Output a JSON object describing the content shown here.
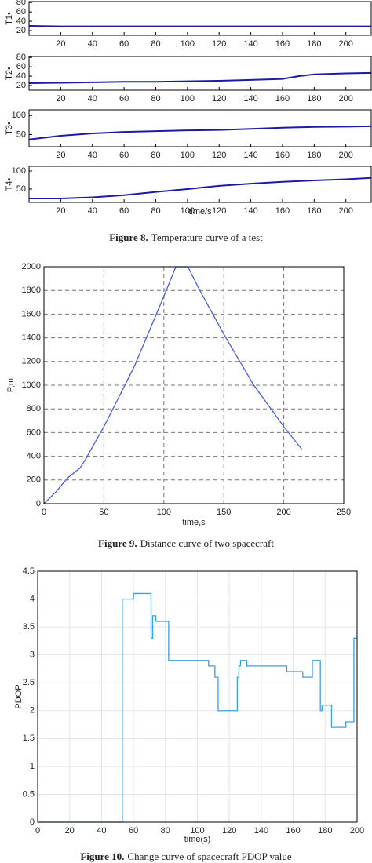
{
  "chart_data": [
    {
      "type": "line",
      "caption_label": "Figure 8.",
      "caption": "Temperature curve of a test",
      "xlabel": "time/s",
      "xlim": [
        0,
        216
      ],
      "xticks": [
        20,
        40,
        60,
        80,
        100,
        120,
        140,
        160,
        180,
        200
      ],
      "color": "#1c1ca0",
      "panels": [
        {
          "ylabel": "T1•",
          "ylim": [
            10,
            82
          ],
          "yticks": [
            20,
            40,
            60,
            80
          ],
          "x": [
            0,
            20,
            40,
            60,
            80,
            100,
            120,
            140,
            160,
            170,
            180,
            200,
            216
          ],
          "values": [
            30,
            29,
            29,
            29,
            29,
            29,
            29,
            29,
            29,
            29,
            29,
            29,
            29
          ]
        },
        {
          "ylabel": "T2•",
          "ylim": [
            10,
            82
          ],
          "yticks": [
            20,
            40,
            60,
            80
          ],
          "x": [
            0,
            20,
            40,
            60,
            80,
            100,
            120,
            140,
            160,
            170,
            180,
            200,
            216
          ],
          "values": [
            25,
            26,
            27,
            28,
            28,
            29,
            30,
            32,
            34,
            40,
            44,
            46,
            47
          ]
        },
        {
          "ylabel": "T3•",
          "ylim": [
            18,
            115
          ],
          "yticks": [
            50,
            100
          ],
          "x": [
            0,
            20,
            40,
            60,
            80,
            100,
            120,
            140,
            160,
            170,
            180,
            200,
            216
          ],
          "values": [
            37,
            47,
            53,
            57,
            59,
            61,
            62,
            65,
            68,
            69,
            70,
            71,
            72
          ]
        },
        {
          "ylabel": "T4•",
          "ylim": [
            13,
            113
          ],
          "yticks": [
            50,
            100
          ],
          "x": [
            0,
            20,
            40,
            60,
            80,
            100,
            120,
            140,
            160,
            170,
            180,
            200,
            216
          ],
          "values": [
            24,
            24,
            27,
            33,
            42,
            50,
            59,
            65,
            70,
            72,
            74,
            77,
            81
          ]
        }
      ]
    },
    {
      "type": "line",
      "caption_label": "Figure 9.",
      "caption": "Distance curve of two spacecraft",
      "xlabel": "time,s",
      "ylabel": "P,m",
      "xlim": [
        0,
        250
      ],
      "xticks": [
        0,
        50,
        100,
        150,
        200,
        250
      ],
      "ylim": [
        0,
        2000
      ],
      "yticks": [
        0,
        200,
        400,
        600,
        800,
        1000,
        1200,
        1400,
        1600,
        1800,
        2000
      ],
      "grid": "dashed",
      "color": "#4a5ce0",
      "x": [
        0,
        10,
        20,
        25,
        30,
        35,
        50,
        75,
        100,
        110,
        120,
        130,
        150,
        175,
        200,
        215
      ],
      "values": [
        0,
        100,
        220,
        260,
        300,
        380,
        650,
        1150,
        1750,
        2000,
        2000,
        1800,
        1430,
        1000,
        650,
        460
      ]
    },
    {
      "type": "step",
      "caption_label": "Figure 10.",
      "caption": "Change curve of spacecraft PDOP value",
      "xlabel": "time(s)",
      "ylabel": "PDOP",
      "xlim": [
        0,
        200
      ],
      "xticks": [
        0,
        20,
        40,
        60,
        80,
        100,
        120,
        140,
        160,
        180,
        200
      ],
      "ylim": [
        0,
        4.5
      ],
      "yticks": [
        0,
        0.5,
        1,
        1.5,
        2,
        2.5,
        3,
        3.5,
        4,
        4.5
      ],
      "grid": "solid",
      "color": "#3ea0d8",
      "x": [
        0,
        53,
        60,
        71,
        72,
        74,
        82,
        107,
        111,
        113,
        125,
        126,
        127,
        128,
        131,
        156,
        166,
        172,
        177,
        178,
        184,
        193,
        198,
        199,
        200
      ],
      "values": [
        0,
        4.0,
        4.1,
        3.3,
        3.7,
        3.6,
        2.9,
        2.8,
        2.6,
        2.0,
        2.6,
        2.8,
        2.9,
        2.9,
        2.8,
        2.7,
        2.6,
        2.9,
        2.0,
        2.1,
        1.7,
        1.8,
        3.3,
        3.3,
        3.3
      ]
    }
  ]
}
